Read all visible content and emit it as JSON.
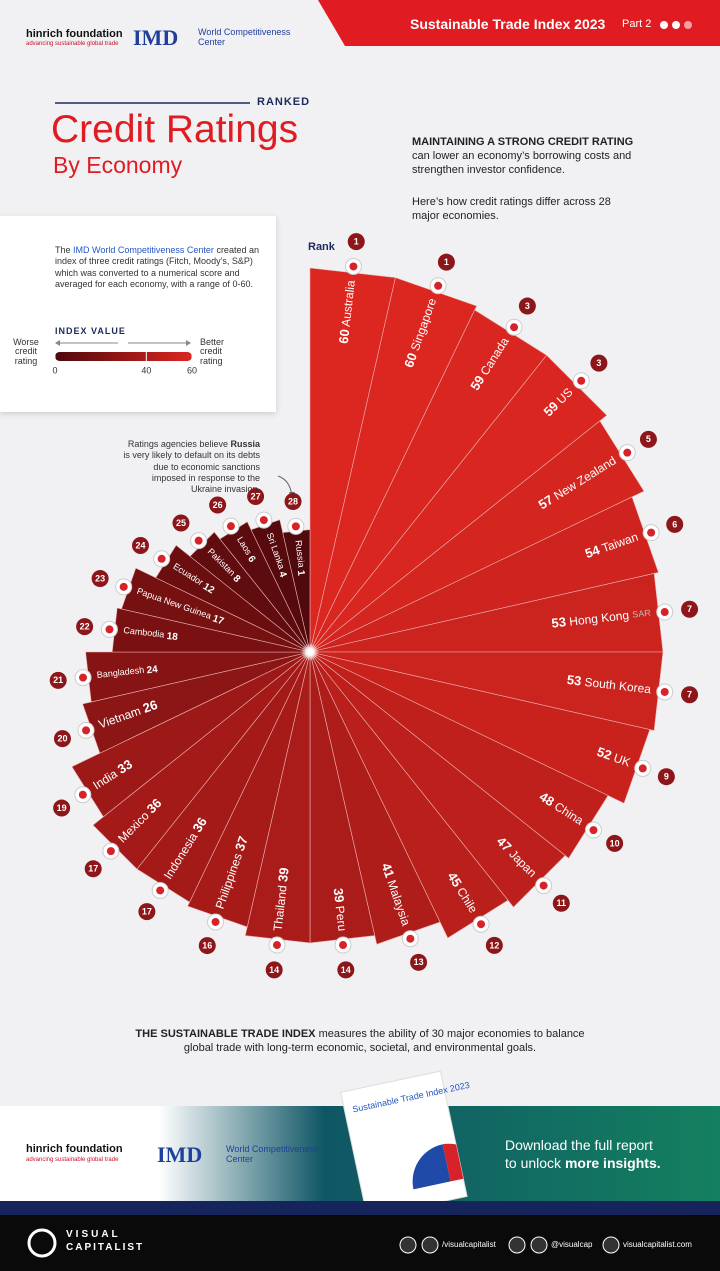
{
  "header": {
    "title": "Sustainable Trade Index 2023",
    "part": "Part 2"
  },
  "logos": {
    "hinrich": "hinrich foundation",
    "hinrich_tagline": "advancing sustainable global trade",
    "imd": "IMD",
    "imd_center": "World Competitiveness Center"
  },
  "heading": {
    "kicker": "RANKED",
    "title": "Credit Ratings",
    "subtitle": "By Economy"
  },
  "intro": {
    "lead": "MAINTAINING A STRONG CREDIT RATING",
    "text": "can lower an economy’s borrowing costs and strengthen investor confidence.",
    "text2": "Here’s how credit ratings differ across 28 major economies."
  },
  "note": {
    "prefix": "The",
    "highlight": "IMD World Competitiveness Center",
    "text": "created an index of three credit ratings (Fitch, Moody’s, S&P) which was converted to a numerical score and averaged for each economy, with a range of 0-60."
  },
  "annotation": {
    "prefix": "Ratings agencies believe",
    "highlight": "Russia",
    "text": "is very likely to default on its debts due to economic sanctions imposed in response to the Ukraine invasion."
  },
  "chart_data": {
    "type": "radial",
    "rank_label": "Rank",
    "categories": [
      "Australia",
      "Singapore",
      "Canada",
      "US",
      "New Zealand",
      "Taiwan",
      "Hong Kong",
      "South Korea",
      "UK",
      "China",
      "Japan",
      "Chile",
      "Malaysia",
      "Peru",
      "Thailand",
      "Philippines",
      "Indonesia",
      "Mexico",
      "India",
      "Vietnam",
      "Bangladesh",
      "Cambodia",
      "Papua New Guinea",
      "Ecuador",
      "Pakistan",
      "Laos",
      "Sri Lanka",
      "Russia"
    ],
    "suffixes": [
      null,
      null,
      null,
      null,
      null,
      null,
      "SAR",
      null,
      null,
      null,
      null,
      null,
      null,
      null,
      null,
      null,
      null,
      null,
      null,
      null,
      null,
      null,
      null,
      null,
      null,
      null,
      null,
      null
    ],
    "values": [
      60,
      60,
      59,
      59,
      57,
      54,
      53,
      53,
      52,
      48,
      47,
      45,
      41,
      39,
      39,
      37,
      36,
      36,
      33,
      26,
      24,
      18,
      17,
      12,
      8,
      6,
      4,
      1
    ],
    "ranks": [
      1,
      1,
      3,
      3,
      5,
      6,
      7,
      7,
      9,
      10,
      11,
      12,
      13,
      14,
      14,
      16,
      17,
      17,
      19,
      20,
      21,
      22,
      23,
      24,
      25,
      26,
      27,
      28
    ],
    "ylim": [
      0,
      60
    ],
    "color_scale": {
      "title": "INDEX VALUE",
      "ticks": [
        0,
        40,
        60
      ],
      "colors": [
        "#4e080c",
        "#dc2620"
      ],
      "min_label": "Worse credit rating",
      "max_label": "Better credit rating"
    }
  },
  "footer_note": {
    "lead": "THE SUSTAINABLE TRADE INDEX",
    "text": "measures the ability of 30 major economies to balance global trade with long-term economic, societal, and environmental goals."
  },
  "cta": {
    "line1": "Download the full report",
    "line2": "to unlock",
    "highlight": "more insights."
  },
  "footer": {
    "brand_top": "VISUAL",
    "brand_bottom": "CAPITALIST",
    "social1": "/visualcapitalist",
    "social2": "@visualcap",
    "website": "visualcapitalist.com"
  }
}
